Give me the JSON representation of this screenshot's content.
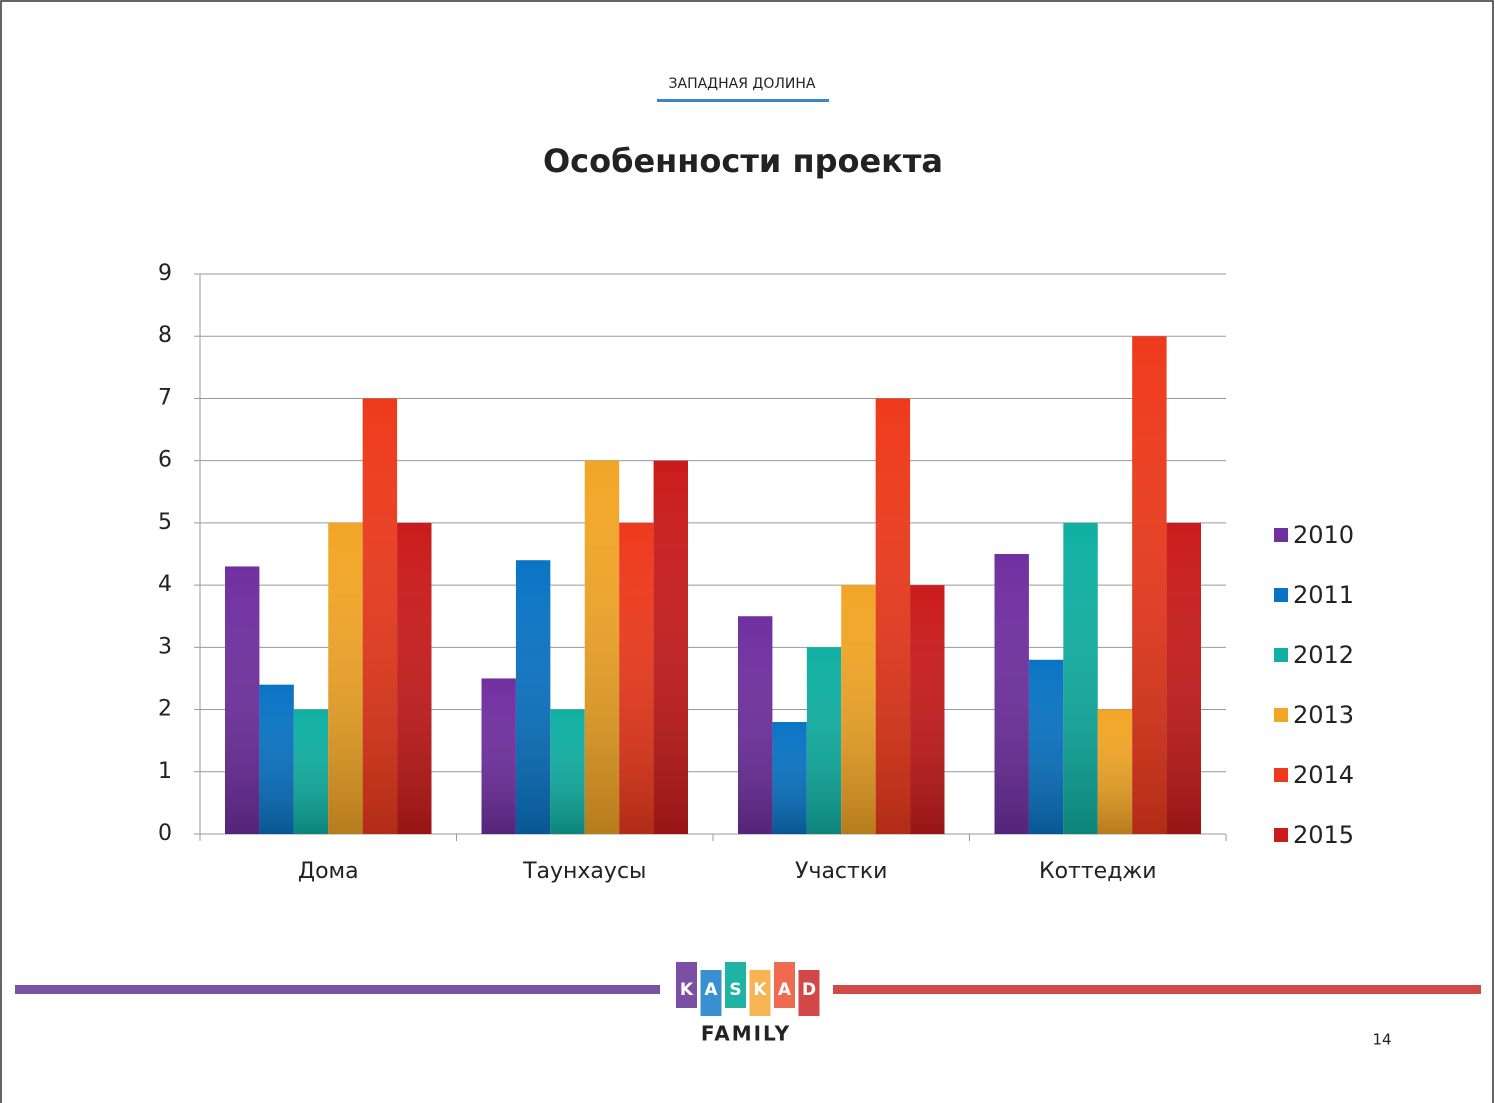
{
  "header": "ЗАПАДНАЯ ДОЛИНА",
  "page_number": "14",
  "logo": {
    "letters": [
      "K",
      "A",
      "S",
      "K",
      "A",
      "D"
    ],
    "subtitle": "FAMILY"
  },
  "chart_data": {
    "type": "bar",
    "title": "Особенности проекта",
    "categories": [
      "Дома",
      "Таунхаусы",
      "Участки",
      "Коттеджи"
    ],
    "series": [
      {
        "name": "2010",
        "color": "#7030a0",
        "values": [
          4.3,
          2.5,
          3.5,
          4.5
        ]
      },
      {
        "name": "2011",
        "color": "#0a74c4",
        "values": [
          2.4,
          4.4,
          1.8,
          2.8
        ]
      },
      {
        "name": "2012",
        "color": "#10b0a2",
        "values": [
          2,
          2,
          3,
          5
        ]
      },
      {
        "name": "2013",
        "color": "#f2a626",
        "values": [
          5,
          6,
          4,
          2
        ]
      },
      {
        "name": "2014",
        "color": "#ee3a1c",
        "values": [
          7,
          5,
          7,
          8
        ]
      },
      {
        "name": "2015",
        "color": "#c91c1c",
        "values": [
          5,
          6,
          4,
          5
        ]
      }
    ],
    "ylim": [
      0,
      9
    ],
    "yticks": [
      0,
      1,
      2,
      3,
      4,
      5,
      6,
      7,
      8,
      9
    ],
    "grid": true,
    "legend": "right"
  }
}
